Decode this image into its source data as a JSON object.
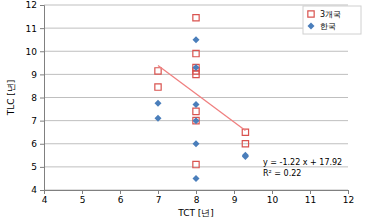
{
  "chart_data": {
    "type": "scatter",
    "x_label": "TCT [년]",
    "y_label": "TLC [년]",
    "xlim": [
      4,
      12
    ],
    "ylim": [
      4,
      12
    ],
    "xticks": [
      4,
      5,
      6,
      7,
      8,
      9,
      10,
      11,
      12
    ],
    "yticks": [
      4,
      5,
      6,
      7,
      8,
      9,
      10,
      11,
      12
    ],
    "grid": true,
    "legend": "top-right",
    "series": [
      {
        "name": "3개국",
        "color": "#d9534f",
        "marker": "square",
        "x": [
          7,
          7,
          8,
          8,
          8,
          8,
          8,
          8,
          8,
          8,
          9.3,
          9.3
        ],
        "values": [
          9.15,
          8.45,
          11.45,
          9.9,
          9.3,
          9.15,
          9.0,
          7.4,
          7.0,
          5.1,
          6.5,
          6.0
        ]
      },
      {
        "name": "한국",
        "color": "#4a7ebb",
        "marker": "diamond",
        "x": [
          7,
          7,
          8,
          8,
          8,
          8,
          8,
          8,
          9.3,
          9.3
        ],
        "values": [
          7.75,
          7.1,
          10.5,
          9.3,
          7.7,
          7.0,
          6.0,
          4.5,
          5.5,
          5.45
        ]
      }
    ],
    "trendline": {
      "x": [
        7,
        9.3
      ],
      "y": [
        9.38,
        6.57
      ],
      "color": "#f08080"
    },
    "annotations": [
      "y = -1.22 x + 17.92",
      "R² = 0.22"
    ]
  }
}
